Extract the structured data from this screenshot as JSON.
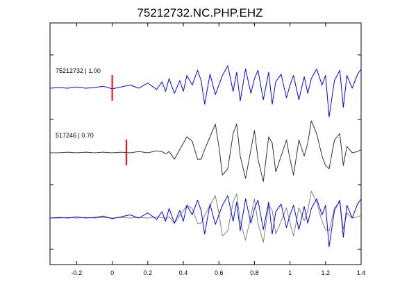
{
  "chart_data": {
    "type": "line",
    "title": "75212732.NC.PHP.EHZ",
    "xlabel": "",
    "ylabel": "",
    "xlim": [
      -0.35,
      1.4
    ],
    "x_ticks": [
      -0.2,
      0,
      0.2,
      0.4,
      0.6,
      0.8,
      1,
      1.2,
      1.4
    ],
    "x_tick_labels": [
      "-0.2",
      "0",
      "0.2",
      "0.4",
      "0.6",
      "0.8",
      "1",
      "1.2",
      "1.4"
    ],
    "grid": false,
    "colors": {
      "blue": "#0000ff",
      "dark": "#303030",
      "gray": "#808080",
      "pick": "#ff0000",
      "axes": "#000000"
    },
    "traces": [
      {
        "label": "75212732 | 1.00",
        "color": "#0000ff",
        "offset": 1.0,
        "pick_time": 0.0,
        "x": [
          -0.35,
          -0.3,
          -0.25,
          -0.2,
          -0.15,
          -0.1,
          -0.05,
          0.0,
          0.05,
          0.1,
          0.15,
          0.2,
          0.25,
          0.28,
          0.3,
          0.32,
          0.35,
          0.38,
          0.4,
          0.42,
          0.45,
          0.48,
          0.5,
          0.52,
          0.55,
          0.58,
          0.6,
          0.62,
          0.65,
          0.68,
          0.7,
          0.72,
          0.75,
          0.78,
          0.8,
          0.82,
          0.85,
          0.88,
          0.9,
          0.92,
          0.95,
          0.98,
          1.0,
          1.02,
          1.05,
          1.08,
          1.1,
          1.12,
          1.15,
          1.18,
          1.2,
          1.22,
          1.25,
          1.28,
          1.3,
          1.32,
          1.35,
          1.38,
          1.4
        ],
        "y": [
          0.0,
          0.01,
          0.0,
          0.02,
          0.0,
          0.01,
          0.03,
          -0.01,
          0.02,
          0.05,
          0.0,
          0.08,
          -0.02,
          0.1,
          -0.05,
          0.15,
          -0.08,
          0.12,
          -0.05,
          0.2,
          0.05,
          0.28,
          0.12,
          -0.25,
          0.22,
          -0.1,
          0.05,
          0.2,
          0.35,
          -0.05,
          0.25,
          -0.2,
          0.3,
          -0.08,
          0.15,
          0.28,
          -0.18,
          0.25,
          -0.25,
          0.1,
          0.22,
          -0.15,
          0.05,
          0.2,
          -0.18,
          0.18,
          -0.08,
          0.15,
          0.3,
          0.05,
          0.2,
          -0.45,
          0.12,
          0.28,
          -0.3,
          0.2,
          0.0,
          0.22,
          0.3
        ]
      },
      {
        "label": "517246 | 0.70",
        "color": "#303030",
        "offset": 0.0,
        "pick_time": 0.08,
        "x": [
          -0.35,
          -0.3,
          -0.25,
          -0.2,
          -0.15,
          -0.1,
          -0.05,
          0.0,
          0.05,
          0.1,
          0.15,
          0.2,
          0.25,
          0.28,
          0.3,
          0.32,
          0.35,
          0.38,
          0.4,
          0.42,
          0.45,
          0.48,
          0.5,
          0.52,
          0.55,
          0.58,
          0.6,
          0.62,
          0.65,
          0.68,
          0.7,
          0.72,
          0.75,
          0.78,
          0.8,
          0.82,
          0.85,
          0.88,
          0.9,
          0.92,
          0.95,
          0.98,
          1.0,
          1.02,
          1.05,
          1.08,
          1.1,
          1.12,
          1.15,
          1.18,
          1.2,
          1.22,
          1.25,
          1.28,
          1.3,
          1.32,
          1.35,
          1.38,
          1.4
        ],
        "y": [
          0.0,
          0.0,
          0.01,
          0.0,
          0.01,
          0.0,
          0.01,
          0.0,
          0.01,
          0.0,
          0.02,
          0.0,
          0.03,
          0.02,
          -0.02,
          0.02,
          -0.1,
          0.05,
          0.15,
          0.25,
          0.18,
          -0.1,
          -0.1,
          0.05,
          0.25,
          0.45,
          0.1,
          -0.35,
          -0.25,
          0.3,
          0.45,
          -0.05,
          -0.4,
          0.05,
          0.35,
          -0.1,
          -0.45,
          0.25,
          0.15,
          -0.3,
          -0.05,
          0.2,
          -0.1,
          -0.35,
          0.2,
          -0.05,
          0.15,
          0.5,
          0.3,
          -0.05,
          -0.2,
          -0.25,
          0.2,
          0.3,
          -0.2,
          0.1,
          0.0,
          0.02,
          0.05
        ]
      },
      {
        "label": "",
        "color": "#808080",
        "offset": -1.0,
        "pick_time": null,
        "x": [
          -0.35,
          -0.3,
          -0.25,
          -0.2,
          -0.15,
          -0.1,
          -0.05,
          0.0,
          0.05,
          0.1,
          0.15,
          0.2,
          0.25,
          0.28,
          0.3,
          0.32,
          0.35,
          0.38,
          0.4,
          0.42,
          0.45,
          0.48,
          0.5,
          0.52,
          0.55,
          0.58,
          0.6,
          0.62,
          0.65,
          0.68,
          0.7,
          0.72,
          0.75,
          0.78,
          0.8,
          0.82,
          0.85,
          0.88,
          0.9,
          0.92,
          0.95,
          0.98,
          1.0,
          1.02,
          1.05,
          1.08,
          1.1,
          1.12,
          1.15,
          1.18,
          1.2,
          1.22,
          1.25,
          1.28,
          1.3,
          1.32,
          1.35,
          1.38,
          1.4
        ],
        "y": [
          0.0,
          0.0,
          0.01,
          0.0,
          0.01,
          0.0,
          0.01,
          0.0,
          0.01,
          0.0,
          0.01,
          0.0,
          0.02,
          0.01,
          -0.01,
          0.02,
          -0.08,
          0.04,
          0.12,
          0.2,
          0.15,
          -0.08,
          -0.08,
          0.04,
          0.2,
          0.35,
          0.08,
          -0.28,
          -0.2,
          0.25,
          0.38,
          -0.05,
          -0.35,
          0.04,
          0.3,
          -0.08,
          -0.38,
          0.2,
          0.12,
          -0.25,
          -0.05,
          0.16,
          -0.08,
          -0.28,
          0.16,
          -0.04,
          0.12,
          0.42,
          0.25,
          -0.05,
          -0.18,
          -0.2,
          0.16,
          0.25,
          -0.18,
          0.08,
          0.0,
          0.02,
          0.04
        ]
      },
      {
        "label": "",
        "color": "#0000ff",
        "offset": -1.0,
        "pick_time": null,
        "x": [
          -0.35,
          -0.3,
          -0.25,
          -0.2,
          -0.15,
          -0.1,
          -0.05,
          0.0,
          0.05,
          0.1,
          0.15,
          0.2,
          0.25,
          0.28,
          0.3,
          0.32,
          0.35,
          0.38,
          0.4,
          0.42,
          0.45,
          0.48,
          0.5,
          0.52,
          0.55,
          0.58,
          0.6,
          0.62,
          0.65,
          0.68,
          0.7,
          0.72,
          0.75,
          0.78,
          0.8,
          0.82,
          0.85,
          0.88,
          0.9,
          0.92,
          0.95,
          0.98,
          1.0,
          1.02,
          1.05,
          1.08,
          1.1,
          1.12,
          1.15,
          1.18,
          1.2,
          1.22,
          1.25,
          1.28,
          1.3,
          1.32,
          1.35,
          1.38,
          1.4
        ],
        "y": [
          0.0,
          0.01,
          0.0,
          0.02,
          0.0,
          0.01,
          0.03,
          -0.01,
          0.02,
          0.05,
          0.0,
          0.08,
          -0.02,
          0.1,
          -0.05,
          0.15,
          -0.08,
          0.12,
          -0.05,
          0.2,
          0.05,
          0.28,
          0.12,
          -0.25,
          0.22,
          -0.1,
          0.05,
          0.2,
          0.35,
          -0.05,
          0.25,
          -0.2,
          0.3,
          -0.08,
          0.15,
          0.28,
          -0.18,
          0.25,
          -0.25,
          0.1,
          0.22,
          -0.15,
          0.05,
          0.2,
          -0.18,
          0.18,
          -0.08,
          0.15,
          0.3,
          0.05,
          0.2,
          -0.45,
          0.12,
          0.28,
          -0.3,
          0.2,
          0.0,
          0.22,
          0.3
        ]
      }
    ]
  }
}
